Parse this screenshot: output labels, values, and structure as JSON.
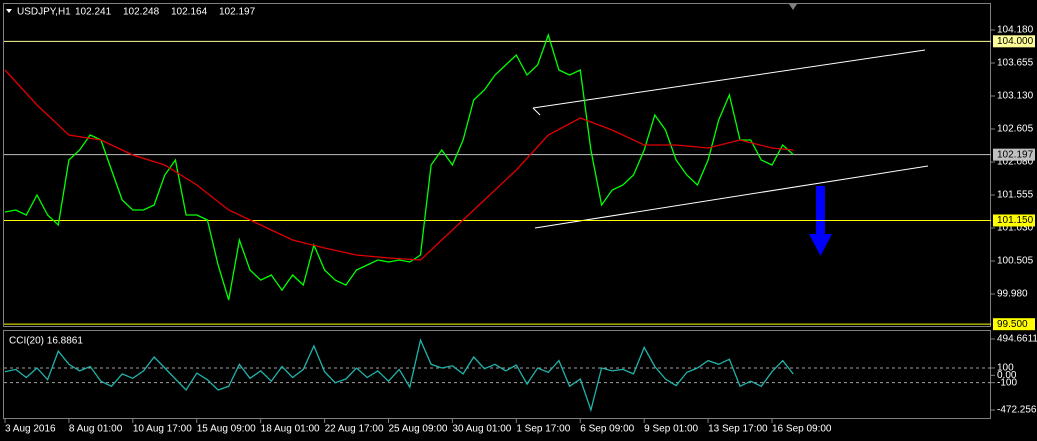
{
  "chart_data": [
    {
      "type": "line",
      "symbol": "USDJPY,H1",
      "ohlc": [
        102.241,
        102.248,
        102.164,
        102.197
      ],
      "categories": [
        "3 Aug 2016",
        null,
        null,
        null,
        null,
        null,
        "8 Aug 01:00",
        null,
        null,
        null,
        null,
        null,
        "10 Aug 17:00",
        null,
        null,
        null,
        null,
        null,
        "15 Aug 09:00",
        null,
        null,
        null,
        null,
        null,
        "18 Aug 01:00",
        null,
        null,
        null,
        null,
        null,
        "22 Aug 17:00",
        null,
        null,
        null,
        null,
        null,
        "25 Aug 09:00",
        null,
        null,
        null,
        null,
        null,
        "30 Aug 01:00",
        null,
        null,
        null,
        null,
        null,
        "1 Sep 17:00",
        null,
        null,
        null,
        null,
        null,
        "6 Sep 09:00",
        null,
        null,
        null,
        null,
        null,
        "9 Sep 01:00",
        null,
        null,
        null,
        null,
        null,
        "13 Sep 17:00",
        null,
        null,
        null,
        null,
        null,
        "16 Sep 09:00",
        null,
        null
      ],
      "series": [
        {
          "color": "#00ff00",
          "values": [
            101.284,
            101.316,
            101.237,
            101.555,
            101.237,
            101.078,
            102.112,
            102.271,
            102.509,
            102.43,
            101.953,
            101.475,
            101.316,
            101.316,
            101.396,
            101.873,
            102.112,
            101.237,
            101.237,
            101.157,
            100.441,
            99.884,
            100.839,
            100.362,
            100.202,
            100.282,
            100.043,
            100.282,
            100.123,
            100.759,
            100.362,
            100.202,
            100.123,
            100.362,
            100.441,
            100.521,
            100.489,
            100.521,
            100.489,
            100.6,
            102.032,
            102.271,
            102.032,
            102.43,
            103.066,
            103.225,
            103.464,
            103.623,
            103.782,
            103.464,
            103.623,
            104.1,
            103.544,
            103.464,
            103.544,
            102.271,
            101.396,
            101.634,
            101.714,
            101.873,
            102.271,
            102.828,
            102.589,
            102.112,
            101.873,
            101.714,
            102.112,
            102.748,
            103.146,
            102.43,
            102.43,
            102.112,
            102.032,
            102.35,
            102.197
          ]
        },
        {
          "color": "#e00000",
          "x": [
            0,
            3,
            6,
            9,
            12,
            15,
            18,
            21,
            24,
            27,
            30,
            33,
            36,
            39,
            42,
            45,
            48,
            51,
            54,
            57,
            60,
            63,
            66,
            69,
            72,
            74
          ],
          "values": [
            103.544,
            102.987,
            102.509,
            102.43,
            102.191,
            102.032,
            101.714,
            101.316,
            101.078,
            100.839,
            100.712,
            100.6,
            100.553,
            100.521,
            100.998,
            101.475,
            101.953,
            102.509,
            102.78,
            102.589,
            102.35,
            102.35,
            102.303,
            102.43,
            102.303,
            102.271
          ]
        }
      ],
      "ylim": [
        99.487,
        104.53
      ],
      "yticks": [
        {
          "value": 104.18,
          "label": "104.180"
        },
        {
          "value": 103.655,
          "label": "103.655"
        },
        {
          "value": 103.13,
          "label": "103.130"
        },
        {
          "value": 102.605,
          "label": "102.605"
        },
        {
          "value": 102.08,
          "label": "102.080"
        },
        {
          "value": 101.555,
          "label": "101.555"
        },
        {
          "value": 101.03,
          "label": "101.030"
        },
        {
          "value": 100.505,
          "label": "100.505"
        },
        {
          "value": 99.98,
          "label": "99.980"
        }
      ],
      "levels": [
        {
          "value": 104,
          "label": "104.000",
          "color": "#ffff99"
        },
        {
          "value": 101.15,
          "label": "101.150",
          "color": "#ffff00"
        },
        {
          "value": 99.5,
          "label": "99.500",
          "color": "#ffff00"
        }
      ],
      "current": {
        "value": 102.197,
        "label": "102.197",
        "color": "#c0c0c0"
      }
    },
    {
      "type": "line",
      "title": "CCI(20) 16.8861",
      "color": "#20b2aa",
      "values": [
        50,
        80,
        -30,
        100,
        -60,
        330,
        150,
        60,
        120,
        -80,
        -150,
        20,
        -40,
        60,
        250,
        100,
        -50,
        -200,
        30,
        -60,
        -200,
        -150,
        150,
        -40,
        60,
        -80,
        120,
        -30,
        80,
        400,
        50,
        -100,
        -50,
        100,
        -30,
        60,
        -80,
        80,
        -160,
        480,
        150,
        100,
        130,
        20,
        250,
        90,
        150,
        60,
        140,
        -120,
        100,
        40,
        200,
        -150,
        -50,
        -472,
        100,
        60,
        80,
        20,
        380,
        120,
        -50,
        -140,
        40,
        100,
        200,
        150,
        220,
        -150,
        -80,
        -150,
        50,
        200,
        16.8861
      ],
      "ylim": [
        -581.2,
        617.2
      ],
      "yticks": [
        494.6611,
        100,
        {
          "value": 0,
          "label": "0.00"
        },
        -100,
        -472.2561
      ],
      "levels": [
        100,
        -100
      ]
    }
  ]
}
